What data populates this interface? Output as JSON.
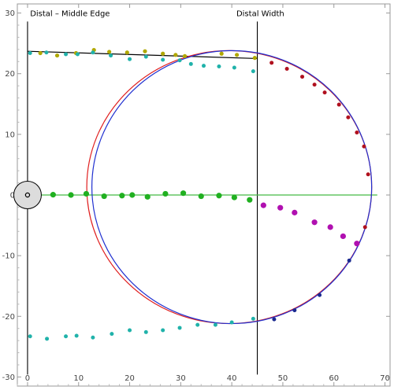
{
  "chart_data": {
    "type": "scatter",
    "title": "",
    "xlabel": "",
    "ylabel": "",
    "xlim": [
      -2,
      71
    ],
    "ylim": [
      -31.5,
      31.5
    ],
    "x_ticks": [
      0,
      10,
      20,
      30,
      40,
      50,
      60,
      70
    ],
    "y_ticks": [
      -30,
      -20,
      -10,
      0,
      10,
      20,
      30
    ],
    "x_tick_labels": [
      "0",
      "10",
      "20",
      "30",
      "40",
      "50",
      "60",
      "70"
    ],
    "y_tick_labels": [
      "-30",
      "-20",
      "-10",
      "0",
      "10",
      "20",
      "30"
    ],
    "grid": false,
    "legend": "none",
    "annotations": [
      {
        "text": "Distal – Middle Edge",
        "x": 0.5,
        "y": 29.5
      },
      {
        "text": "Distal Width",
        "x": 40.9,
        "y": 29.5
      }
    ],
    "vertical_lines": [
      {
        "name": "distal-middle-edge-line",
        "x": 0,
        "y_range": [
          -29.6,
          28.6
        ],
        "color": "#000000"
      },
      {
        "name": "distal-width-line",
        "x": 45,
        "y_range": [
          -29.6,
          28.6
        ],
        "color": "#000000"
      }
    ],
    "lines": [
      {
        "name": "top-edge-fit-line",
        "points": [
          [
            0,
            23.7
          ],
          [
            45,
            22.5
          ]
        ],
        "color": "#000000"
      },
      {
        "name": "midline",
        "points": [
          [
            0,
            0
          ],
          [
            68.5,
            0
          ]
        ],
        "color": "#44bb44"
      }
    ],
    "ellipses": [
      {
        "name": "red-fit-ellipse",
        "cx": 39.5,
        "cy": 1.3,
        "rx": 27.9,
        "ry": 22.5,
        "color": "#e02020"
      },
      {
        "name": "blue-fit-ellipse",
        "cx": 40.0,
        "cy": 1.3,
        "rx": 27.4,
        "ry": 22.5,
        "color": "#2030d0"
      }
    ],
    "origin_marker": {
      "x": 0,
      "y": 0,
      "radius_units": 2.7,
      "fill": "#dcdcdc",
      "stroke": "#000000"
    },
    "series": [
      {
        "color": "#b0a800",
        "marker_size": 2.6,
        "points": [
          [
            2.5,
            23.4
          ],
          [
            5.8,
            23.0
          ],
          [
            9.5,
            23.4
          ],
          [
            13,
            23.9
          ],
          [
            16,
            23.6
          ],
          [
            19.5,
            23.5
          ],
          [
            23,
            23.7
          ],
          [
            26.5,
            23.3
          ],
          [
            29,
            23.1
          ],
          [
            30.8,
            22.9
          ],
          [
            38,
            23.3
          ],
          [
            41,
            23.1
          ],
          [
            44.5,
            22.6
          ]
        ]
      },
      {
        "color": "#20b2aa",
        "marker_size": 2.5,
        "points": [
          [
            0.5,
            23.4
          ],
          [
            3.7,
            23.5
          ],
          [
            7.5,
            23.2
          ],
          [
            9.8,
            23.2
          ],
          [
            12.8,
            23.5
          ],
          [
            16.3,
            23.0
          ],
          [
            20,
            22.4
          ],
          [
            23.2,
            22.8
          ],
          [
            26.5,
            22.3
          ],
          [
            29.8,
            22.2
          ],
          [
            32,
            21.6
          ],
          [
            34.5,
            21.3
          ],
          [
            37.5,
            21.2
          ],
          [
            40.5,
            21.0
          ],
          [
            44.2,
            20.4
          ],
          [
            0.5,
            -23.3
          ],
          [
            3.8,
            -23.7
          ],
          [
            7.5,
            -23.3
          ],
          [
            9.6,
            -23.2
          ],
          [
            12.8,
            -23.5
          ],
          [
            16.5,
            -22.9
          ],
          [
            20,
            -22.3
          ],
          [
            23.2,
            -22.6
          ],
          [
            26.5,
            -22.3
          ],
          [
            29.8,
            -21.9
          ],
          [
            33.3,
            -21.4
          ],
          [
            36.8,
            -21.4
          ],
          [
            40,
            -21.0
          ],
          [
            44.2,
            -20.4
          ]
        ]
      },
      {
        "color": "#b0101e",
        "marker_size": 2.5,
        "points": [
          [
            47.8,
            21.8
          ],
          [
            50.8,
            20.8
          ],
          [
            53.8,
            19.5
          ],
          [
            56.2,
            18.2
          ],
          [
            58.2,
            16.9
          ],
          [
            61,
            14.9
          ],
          [
            62.8,
            12.8
          ],
          [
            64.5,
            10.3
          ],
          [
            65.9,
            8.0
          ],
          [
            66.7,
            3.4
          ],
          [
            66.1,
            -5.3
          ]
        ]
      },
      {
        "color": "#20b020",
        "marker_size": 3.6,
        "points": [
          [
            5,
            0.05
          ],
          [
            8.5,
            0.0
          ],
          [
            11.5,
            0.2
          ],
          [
            15,
            -0.2
          ],
          [
            18.5,
            -0.1
          ],
          [
            20.5,
            0.0
          ],
          [
            23.5,
            -0.3
          ],
          [
            27,
            0.2
          ],
          [
            30.5,
            0.3
          ],
          [
            34,
            -0.2
          ],
          [
            37.5,
            -0.1
          ],
          [
            40.5,
            -0.4
          ],
          [
            43.5,
            -0.8
          ]
        ]
      },
      {
        "color": "#b010b0",
        "marker_size": 3.6,
        "points": [
          [
            46.2,
            -1.7
          ],
          [
            49.5,
            -2.1
          ],
          [
            52.3,
            -2.9
          ],
          [
            56.2,
            -4.5
          ],
          [
            59.3,
            -5.3
          ],
          [
            61.8,
            -6.8
          ],
          [
            64.5,
            -8.0
          ]
        ]
      },
      {
        "color": "#1a2a90",
        "marker_size": 2.5,
        "points": [
          [
            48.3,
            -20.5
          ],
          [
            52.3,
            -19.0
          ],
          [
            57.2,
            -16.5
          ],
          [
            63,
            -10.8
          ]
        ]
      }
    ]
  }
}
